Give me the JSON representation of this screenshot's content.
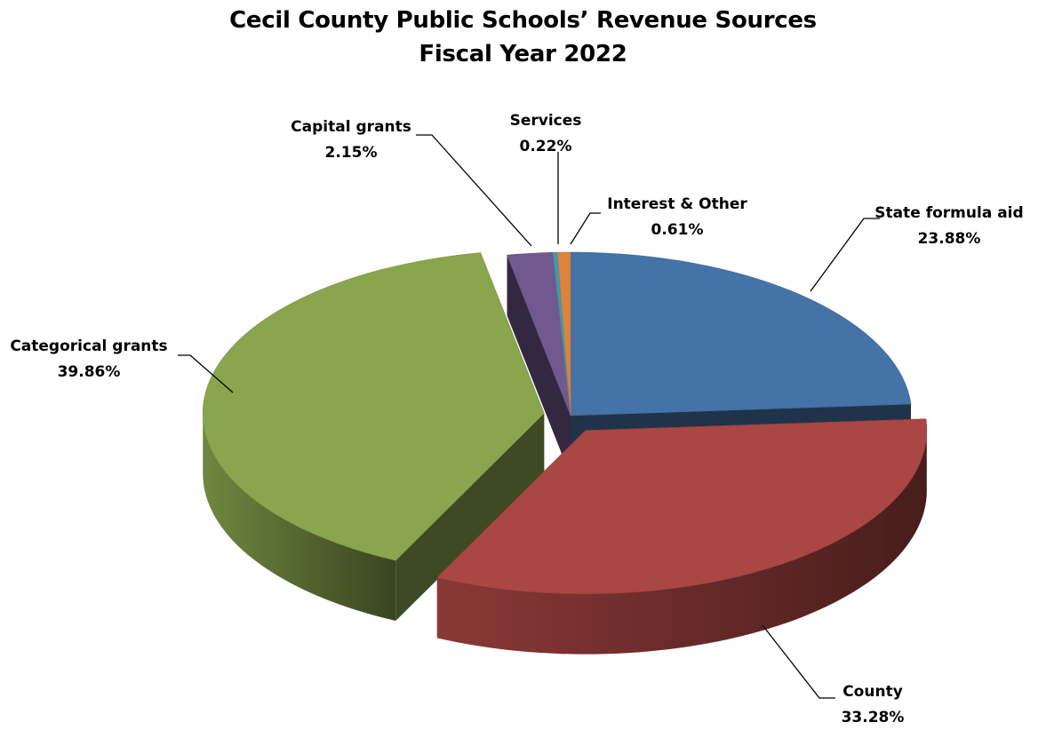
{
  "chart_data": {
    "type": "pie",
    "title": "Cecil County Public Schools’ Revenue Sources",
    "subtitle": "Fiscal Year 2022",
    "slices": [
      {
        "name": "State formula aid",
        "value": 23.88,
        "label": "23.88%",
        "color": "#4572A7",
        "exploded": false
      },
      {
        "name": "County",
        "value": 33.28,
        "label": "33.28%",
        "color": "#AA4643",
        "exploded": true
      },
      {
        "name": "Categorical grants",
        "value": 39.86,
        "label": "39.86%",
        "color": "#89A54E",
        "exploded": true
      },
      {
        "name": "Capital grants",
        "value": 2.15,
        "label": "2.15%",
        "color": "#71588F",
        "exploded": false
      },
      {
        "name": "Services",
        "value": 0.22,
        "label": "0.22%",
        "color": "#4198AF",
        "exploded": false
      },
      {
        "name": "Interest & Other",
        "value": 0.61,
        "label": "0.61%",
        "color": "#DB843D",
        "exploded": false
      }
    ],
    "legend": "none",
    "style": "3d-exploded-pie"
  }
}
